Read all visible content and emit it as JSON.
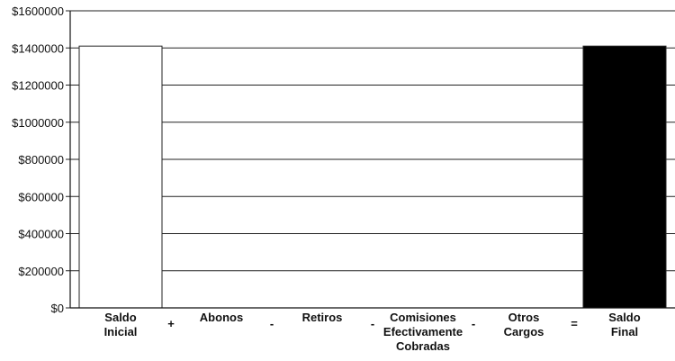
{
  "chart_data": {
    "type": "bar",
    "categories": [
      [
        "Saldo",
        "Inicial"
      ],
      [
        "Abonos"
      ],
      [
        "Retiros"
      ],
      [
        "Comisiones",
        "Efectivamente",
        "Cobradas"
      ],
      [
        "Otros",
        "Cargos"
      ],
      [
        "Saldo",
        "Final"
      ]
    ],
    "operators": [
      "+",
      "-",
      "-",
      "-",
      "="
    ],
    "values": [
      1410000,
      0,
      0,
      0,
      0,
      1410000
    ],
    "bar_colors": [
      "#ffffff",
      "#ffffff",
      "#ffffff",
      "#ffffff",
      "#ffffff",
      "#000000"
    ],
    "y_ticks": [
      "$0",
      "$200000",
      "$400000",
      "$600000",
      "$800000",
      "$1000000",
      "$1200000",
      "$1400000",
      "$1600000"
    ],
    "ylim": [
      0,
      1600000
    ],
    "grid": true,
    "title": "",
    "xlabel": "",
    "ylabel": ""
  }
}
